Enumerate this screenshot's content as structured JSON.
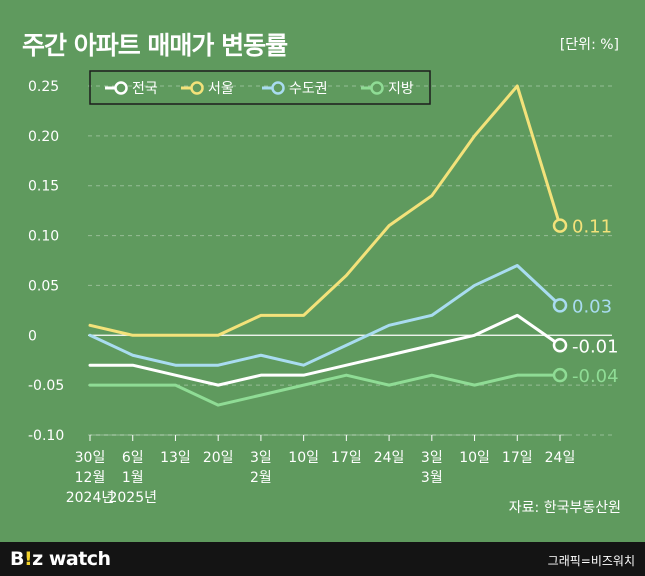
{
  "header": {
    "title": "주간 아파트 매매가 변동률",
    "unit": "[단위: %]"
  },
  "source": "자료: 한국부동산원",
  "footer": {
    "brand_prefix": "B",
    "brand_dot": "!",
    "brand_rest": "z watch",
    "credit": "그래픽=비즈워치"
  },
  "colors": {
    "background": "#5f9a5e",
    "national": "#ffffff",
    "seoul": "#f3e27a",
    "metro": "#a9dcf0",
    "regional": "#8fdc95"
  },
  "chart_data": {
    "type": "line",
    "title": "주간 아파트 매매가 변동률",
    "ylabel": "",
    "xlabel": "",
    "ylim": [
      -0.1,
      0.25
    ],
    "yticks": [
      0.25,
      0.2,
      0.15,
      0.1,
      0.05,
      0,
      -0.05,
      -0.1
    ],
    "ytick_labels": [
      "0.25",
      "0.20",
      "0.15",
      "0.10",
      "0.05",
      "0",
      "-0.05",
      "-0.10"
    ],
    "grid": true,
    "legend_position": "top-left",
    "categories": [
      "30일",
      "6일",
      "13일",
      "20일",
      "3일",
      "10일",
      "17일",
      "24일",
      "3일",
      "10일",
      "17일",
      "24일"
    ],
    "category_months": [
      "12월",
      "1월",
      "",
      "",
      "2월",
      "",
      "",
      "",
      "3월",
      "",
      "",
      ""
    ],
    "category_years": [
      "2024년",
      "2025년",
      "",
      "",
      "",
      "",
      "",
      "",
      "",
      "",
      "",
      ""
    ],
    "series": [
      {
        "name": "전국",
        "values": [
          -0.03,
          -0.03,
          -0.04,
          -0.05,
          -0.04,
          -0.04,
          -0.03,
          -0.02,
          -0.01,
          0,
          0.02,
          -0.01
        ],
        "end_label": "-0.01"
      },
      {
        "name": "서울",
        "values": [
          0.01,
          0,
          0,
          0,
          0.02,
          0.02,
          0.06,
          0.11,
          0.14,
          0.2,
          0.25,
          0.11
        ],
        "end_label": "0.11"
      },
      {
        "name": "수도권",
        "values": [
          0,
          -0.02,
          -0.03,
          -0.03,
          -0.02,
          -0.03,
          -0.01,
          0.01,
          0.02,
          0.05,
          0.07,
          0.03
        ],
        "end_label": "0.03"
      },
      {
        "name": "지방",
        "values": [
          -0.05,
          -0.05,
          -0.05,
          -0.07,
          -0.06,
          -0.05,
          -0.04,
          -0.05,
          -0.04,
          -0.05,
          -0.04,
          -0.04
        ],
        "end_label": "-0.04"
      }
    ]
  }
}
